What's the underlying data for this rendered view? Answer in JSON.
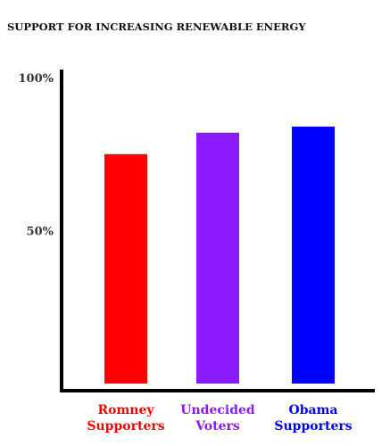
{
  "chart_data": {
    "type": "bar",
    "title": "SUPPORT FOR INCREASING RENEWABLE ENERGY",
    "xlabel": "",
    "ylabel": "",
    "ylim": [
      0,
      100
    ],
    "grid": false,
    "legend": "none",
    "y_ticks": [
      {
        "value": 100,
        "label": "100%"
      },
      {
        "value": 50,
        "label": "50%"
      }
    ],
    "categories": [
      {
        "line1": "Romney",
        "line2": "Supporters",
        "color": "#ff0000"
      },
      {
        "line1": "Undecided",
        "line2": "Voters",
        "color": "#8c1aff"
      },
      {
        "line1": "Obama",
        "line2": "Supporters",
        "color": "#0000ff"
      }
    ],
    "values": [
      75,
      82,
      84
    ]
  }
}
